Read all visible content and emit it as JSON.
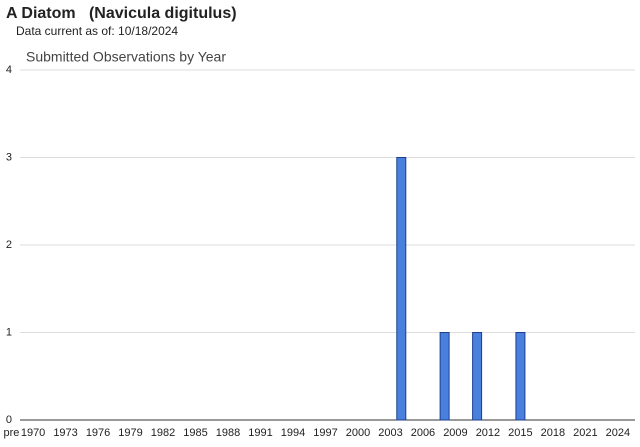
{
  "header": {
    "title": "A Diatom   (Navicula digitulus)",
    "subtitle": "Data current as of: 10/18/2024"
  },
  "chart_data": {
    "type": "bar",
    "title": "Submitted Observations by Year",
    "categories": [
      "pre",
      null,
      "1970",
      null,
      null,
      "1973",
      null,
      null,
      "1976",
      null,
      null,
      "1979",
      null,
      null,
      "1982",
      null,
      null,
      "1985",
      null,
      null,
      "1988",
      null,
      null,
      "1991",
      null,
      null,
      "1994",
      null,
      null,
      "1997",
      null,
      null,
      "2000",
      null,
      null,
      "2003",
      null,
      null,
      "2006",
      null,
      null,
      "2009",
      null,
      null,
      "2012",
      null,
      null,
      "2015",
      null,
      null,
      "2018",
      null,
      null,
      "2021",
      null,
      null,
      "2024"
    ],
    "values": [
      0,
      0,
      0,
      0,
      0,
      0,
      0,
      0,
      0,
      0,
      0,
      0,
      0,
      0,
      0,
      0,
      0,
      0,
      0,
      0,
      0,
      0,
      0,
      0,
      0,
      0,
      0,
      0,
      0,
      0,
      0,
      0,
      0,
      0,
      0,
      0,
      3,
      0,
      0,
      0,
      1,
      0,
      0,
      1,
      0,
      0,
      0,
      1,
      0,
      0,
      0,
      0,
      0,
      0,
      0,
      0,
      0
    ],
    "color": "#4a80dd",
    "ylim": [
      0,
      4
    ],
    "yticks": [
      0,
      1,
      2,
      3,
      4
    ],
    "grid": true
  }
}
